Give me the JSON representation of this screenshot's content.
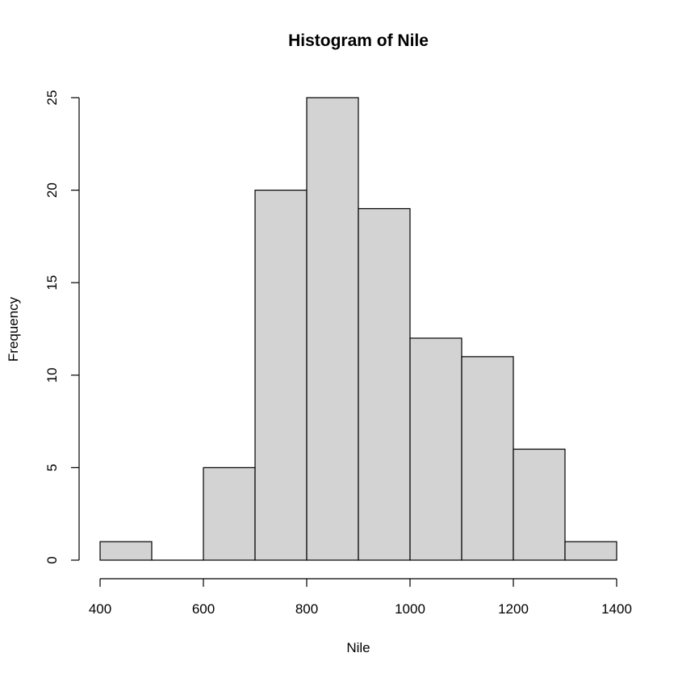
{
  "chart_data": {
    "type": "bar",
    "title": "Histogram of Nile",
    "xlabel": "Nile",
    "ylabel": "Frequency",
    "bins": [
      {
        "start": 400,
        "end": 500,
        "count": 1
      },
      {
        "start": 500,
        "end": 600,
        "count": 0
      },
      {
        "start": 600,
        "end": 700,
        "count": 5
      },
      {
        "start": 700,
        "end": 800,
        "count": 20
      },
      {
        "start": 800,
        "end": 900,
        "count": 25
      },
      {
        "start": 900,
        "end": 1000,
        "count": 19
      },
      {
        "start": 1000,
        "end": 1100,
        "count": 12
      },
      {
        "start": 1100,
        "end": 1200,
        "count": 11
      },
      {
        "start": 1200,
        "end": 1300,
        "count": 6
      },
      {
        "start": 1300,
        "end": 1400,
        "count": 1
      }
    ],
    "xlim": [
      400,
      1400
    ],
    "ylim": [
      0,
      25
    ],
    "x_ticks": [
      400,
      600,
      800,
      1000,
      1200,
      1400
    ],
    "y_ticks": [
      0,
      5,
      10,
      15,
      20,
      25
    ],
    "grid": false,
    "bar_color": "#d3d3d3",
    "edge_color": "#000000"
  }
}
